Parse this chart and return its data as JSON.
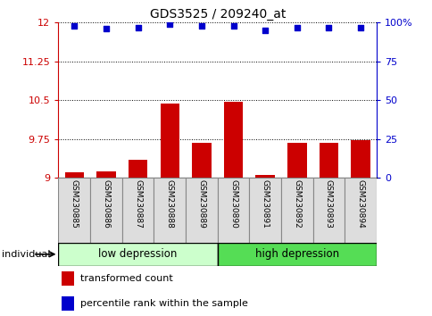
{
  "title": "GDS3525 / 209240_at",
  "samples": [
    "GSM230885",
    "GSM230886",
    "GSM230887",
    "GSM230888",
    "GSM230889",
    "GSM230890",
    "GSM230891",
    "GSM230892",
    "GSM230893",
    "GSM230894"
  ],
  "bar_values": [
    9.1,
    9.12,
    9.35,
    10.43,
    9.68,
    10.47,
    9.05,
    9.68,
    9.67,
    9.73
  ],
  "dot_values": [
    98,
    96,
    97,
    99,
    98,
    98,
    95,
    97,
    97,
    97
  ],
  "bar_color": "#cc0000",
  "dot_color": "#0000cc",
  "ylim_left": [
    9.0,
    12.0
  ],
  "ylim_right": [
    0,
    100
  ],
  "yticks_left": [
    9.0,
    9.75,
    10.5,
    11.25,
    12.0
  ],
  "ytick_labels_left": [
    "9",
    "9.75",
    "10.5",
    "11.25",
    "12"
  ],
  "yticks_right": [
    0,
    25,
    50,
    75,
    100
  ],
  "ytick_labels_right": [
    "0",
    "25",
    "50",
    "75",
    "100%"
  ],
  "group1_label": "low depression",
  "group2_label": "high depression",
  "group1_count": 5,
  "group2_count": 5,
  "group1_color": "#ccffcc",
  "group2_color": "#55dd55",
  "individual_label": "individual",
  "legend_bar_label": "transformed count",
  "legend_dot_label": "percentile rank within the sample",
  "grid_color": "black",
  "sample_box_color": "#dddddd",
  "sample_box_edge": "#888888"
}
